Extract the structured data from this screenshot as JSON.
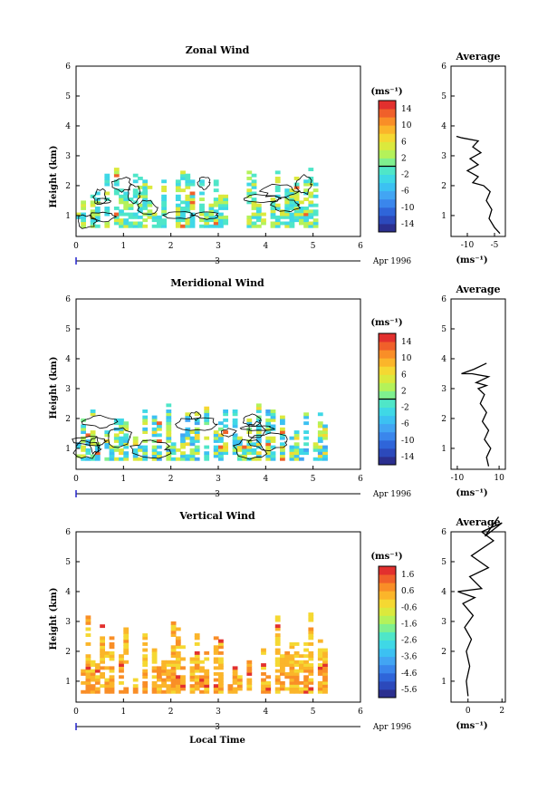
{
  "figure": {
    "x_axis_label": "Local Time",
    "date_label": "Apr 1996",
    "date_ruler_label": "3",
    "panels": [
      {
        "title": "Zonal Wind",
        "colorbar_unit": "(ms⁻¹)",
        "colorbar_ticks": [
          "14",
          "10",
          "6",
          "2",
          "-2",
          "-6",
          "-10",
          "-14"
        ],
        "colorbar_range": [
          -16,
          16
        ],
        "average_title": "Average",
        "average_xlabel": "(ms⁻¹)",
        "average_xticks": [
          "-10",
          "-5"
        ],
        "average_xrange": [
          -13,
          -3
        ]
      },
      {
        "title": "Meridional Wind",
        "colorbar_unit": "(ms⁻¹)",
        "colorbar_ticks": [
          "14",
          "10",
          "6",
          "2",
          "-2",
          "-6",
          "-10",
          "-14"
        ],
        "colorbar_range": [
          -16,
          16
        ],
        "average_title": "Average",
        "average_xlabel": "(ms⁻¹)",
        "average_xticks": [
          "-10",
          "10"
        ],
        "average_xrange": [
          -13,
          13
        ]
      },
      {
        "title": "Vertical Wind",
        "colorbar_unit": "(ms⁻¹)",
        "colorbar_ticks": [
          "1.6",
          "0.6",
          "-0.6",
          "-1.6",
          "-2.6",
          "-3.6",
          "-4.6",
          "-5.6"
        ],
        "colorbar_range": [
          -6.2,
          2.2
        ],
        "average_title": "Average",
        "average_xlabel": "(ms⁻¹)",
        "average_xticks": [
          "0",
          "2"
        ],
        "average_xrange": [
          -1,
          2.2
        ]
      }
    ]
  },
  "chart_data": [
    {
      "type": "heatmap",
      "title": "Zonal Wind",
      "xlabel": "",
      "ylabel": "Height (km)",
      "xlim": [
        0,
        6
      ],
      "ylim": [
        0.3,
        6
      ],
      "x_ticks": [
        0,
        1,
        2,
        3,
        4,
        5,
        6
      ],
      "y_ticks": [
        1,
        2,
        3,
        4,
        5,
        6
      ],
      "data_extent_x": [
        0,
        5.2
      ],
      "data_top_km": 2.6,
      "colorbar_ticks": [
        14,
        10,
        6,
        2,
        -2,
        -6,
        -10,
        -14
      ],
      "dominant_values": [
        -2,
        4
      ],
      "average_profile": {
        "title": "Average",
        "xlabel": "(ms⁻¹)",
        "x_ticks": [
          -10,
          -5
        ],
        "xlim": [
          -13,
          -3
        ],
        "y_ticks": [
          1,
          2,
          3,
          4,
          5,
          6
        ],
        "ylim": [
          0.3,
          6
        ],
        "points": [
          [
            -4,
            0.4
          ],
          [
            -5,
            0.6
          ],
          [
            -6,
            0.9
          ],
          [
            -5.5,
            1.2
          ],
          [
            -6.5,
            1.5
          ],
          [
            -5.8,
            1.8
          ],
          [
            -7,
            2.0
          ],
          [
            -9,
            2.1
          ],
          [
            -8,
            2.3
          ],
          [
            -10,
            2.5
          ],
          [
            -8,
            2.7
          ],
          [
            -9.5,
            2.9
          ],
          [
            -7.5,
            3.1
          ],
          [
            -9,
            3.3
          ],
          [
            -8,
            3.5
          ],
          [
            -11,
            3.6
          ],
          [
            -12,
            3.65
          ]
        ]
      }
    },
    {
      "type": "heatmap",
      "title": "Meridional Wind",
      "xlabel": "",
      "ylabel": "Height (km)",
      "xlim": [
        0,
        6
      ],
      "ylim": [
        0.3,
        6
      ],
      "x_ticks": [
        0,
        1,
        2,
        3,
        4,
        5,
        6
      ],
      "y_ticks": [
        1,
        2,
        3,
        4,
        5,
        6
      ],
      "data_extent_x": [
        0,
        5.2
      ],
      "data_top_km": 2.5,
      "colorbar_ticks": [
        14,
        10,
        6,
        2,
        -2,
        -6,
        -10,
        -14
      ],
      "dominant_values": [
        -4,
        4
      ],
      "average_profile": {
        "title": "Average",
        "xlabel": "(ms⁻¹)",
        "x_ticks": [
          -10,
          10
        ],
        "xlim": [
          -13,
          13
        ],
        "y_ticks": [
          1,
          2,
          3,
          4,
          5,
          6
        ],
        "ylim": [
          0.3,
          6
        ],
        "points": [
          [
            5,
            0.4
          ],
          [
            4,
            0.7
          ],
          [
            6,
            1.0
          ],
          [
            3,
            1.3
          ],
          [
            5,
            1.6
          ],
          [
            2,
            1.9
          ],
          [
            4,
            2.2
          ],
          [
            1,
            2.5
          ],
          [
            3,
            2.8
          ],
          [
            0,
            3.0
          ],
          [
            4,
            3.1
          ],
          [
            -1,
            3.2
          ],
          [
            5,
            3.4
          ],
          [
            -3,
            3.5
          ],
          [
            -8,
            3.5
          ],
          [
            -2,
            3.65
          ],
          [
            4,
            3.85
          ]
        ]
      }
    },
    {
      "type": "heatmap",
      "title": "Vertical Wind",
      "xlabel": "Local Time",
      "ylabel": "Height (km)",
      "xlim": [
        0,
        6
      ],
      "ylim": [
        0.3,
        6
      ],
      "x_ticks": [
        0,
        1,
        2,
        3,
        4,
        5,
        6
      ],
      "y_ticks": [
        1,
        2,
        3,
        4,
        5,
        6
      ],
      "data_extent_x": [
        0,
        5.2
      ],
      "data_top_km": 3.3,
      "colorbar_ticks": [
        1.6,
        0.6,
        -0.6,
        -1.6,
        -2.6,
        -3.6,
        -4.6,
        -5.6
      ],
      "dominant_values": [
        0.6,
        0.2
      ],
      "average_profile": {
        "title": "Average",
        "xlabel": "(ms⁻¹)",
        "x_ticks": [
          0,
          2
        ],
        "xlim": [
          -1,
          2.2
        ],
        "y_ticks": [
          1,
          2,
          3,
          4,
          5,
          6
        ],
        "ylim": [
          0.3,
          6
        ],
        "points": [
          [
            0,
            0.5
          ],
          [
            -0.1,
            1.0
          ],
          [
            0.1,
            1.5
          ],
          [
            -0.1,
            2.0
          ],
          [
            0.2,
            2.4
          ],
          [
            -0.2,
            2.8
          ],
          [
            0.3,
            3.2
          ],
          [
            -0.3,
            3.6
          ],
          [
            0.4,
            3.8
          ],
          [
            -0.6,
            4.0
          ],
          [
            0.8,
            4.1
          ],
          [
            0.1,
            4.5
          ],
          [
            1.2,
            4.8
          ],
          [
            0.2,
            5.2
          ],
          [
            1.5,
            5.7
          ],
          [
            0.8,
            6.0
          ],
          [
            2.0,
            6.3
          ],
          [
            1.0,
            5.85
          ],
          [
            1.8,
            6.5
          ]
        ]
      }
    }
  ]
}
